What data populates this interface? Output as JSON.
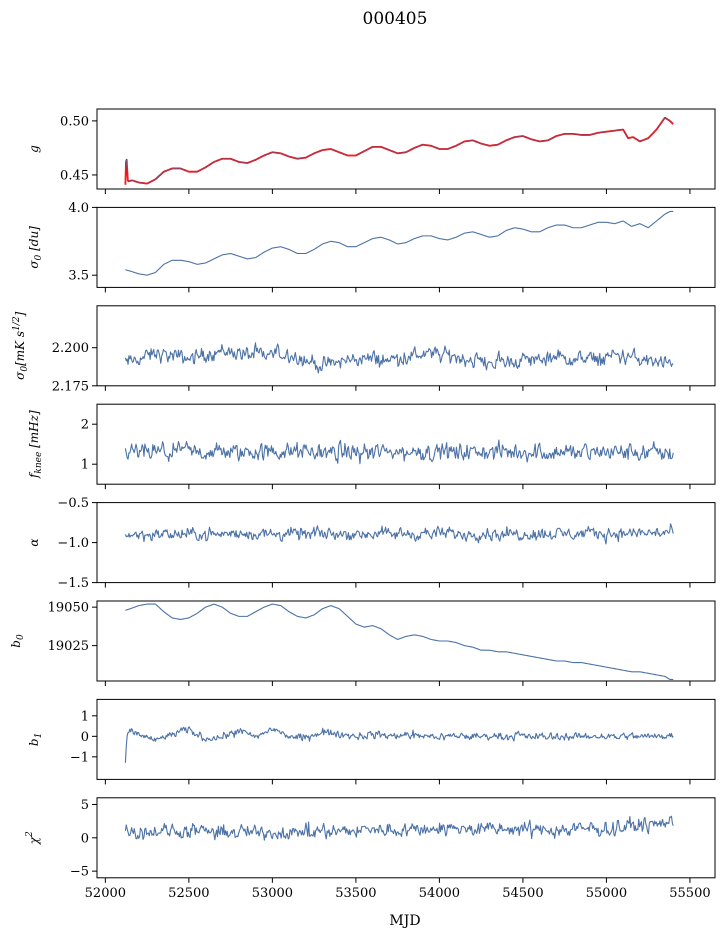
{
  "figure_title": "000405",
  "xlabel": "MJD",
  "colors": {
    "series": "#4c72a6",
    "fit_overlay": "#ff0000",
    "axes": "#000000"
  },
  "chart_data": [
    {
      "type": "line",
      "ylabel": "g",
      "xlim": [
        51950,
        55650
      ],
      "ylim": [
        0.437,
        0.511
      ],
      "yticks": [
        0.45,
        0.5
      ],
      "ytick_labels": [
        "0.45",
        "0.50"
      ],
      "series": [
        {
          "color": "#ff0000",
          "x": [
            52120,
            52125,
            52135,
            52160,
            52200,
            52250,
            52300,
            52350,
            52400,
            52450,
            52500,
            52550,
            52600,
            52650,
            52700,
            52750,
            52800,
            52850,
            52900,
            52950,
            53000,
            53050,
            53100,
            53150,
            53200,
            53250,
            53300,
            53350,
            53400,
            53450,
            53500,
            53550,
            53600,
            53650,
            53700,
            53750,
            53800,
            53850,
            53900,
            53950,
            54000,
            54050,
            54100,
            54150,
            54200,
            54250,
            54300,
            54350,
            54400,
            54450,
            54500,
            54550,
            54600,
            54650,
            54700,
            54750,
            54800,
            54850,
            54900,
            54950,
            55000,
            55050,
            55100,
            55130,
            55160,
            55200,
            55250,
            55300,
            55350,
            55380,
            55400
          ],
          "y": [
            0.441,
            0.47,
            0.444,
            0.445,
            0.443,
            0.442,
            0.446,
            0.453,
            0.456,
            0.456,
            0.453,
            0.453,
            0.457,
            0.462,
            0.465,
            0.465,
            0.462,
            0.461,
            0.464,
            0.468,
            0.471,
            0.47,
            0.467,
            0.465,
            0.466,
            0.47,
            0.473,
            0.474,
            0.471,
            0.468,
            0.468,
            0.472,
            0.476,
            0.476,
            0.473,
            0.47,
            0.471,
            0.475,
            0.478,
            0.477,
            0.474,
            0.474,
            0.477,
            0.481,
            0.482,
            0.479,
            0.477,
            0.478,
            0.482,
            0.485,
            0.486,
            0.483,
            0.481,
            0.482,
            0.486,
            0.488,
            0.488,
            0.487,
            0.487,
            0.489,
            0.49,
            0.491,
            0.492,
            0.484,
            0.485,
            0.481,
            0.484,
            0.492,
            0.503,
            0.5,
            0.497
          ]
        }
      ]
    },
    {
      "type": "line",
      "ylabel": "σ0 [du]",
      "xlim": [
        51950,
        55650
      ],
      "ylim": [
        3.41,
        4.0
      ],
      "yticks": [
        3.5,
        4.0
      ],
      "ytick_labels": [
        "3.5",
        "4.0"
      ],
      "series": [
        {
          "color": "#4c72a6",
          "x": [
            52120,
            52150,
            52200,
            52250,
            52300,
            52350,
            52400,
            52450,
            52500,
            52550,
            52600,
            52650,
            52700,
            52750,
            52800,
            52850,
            52900,
            52950,
            53000,
            53050,
            53100,
            53150,
            53200,
            53250,
            53300,
            53350,
            53400,
            53450,
            53500,
            53550,
            53600,
            53650,
            53700,
            53750,
            53800,
            53850,
            53900,
            53950,
            54000,
            54050,
            54100,
            54150,
            54200,
            54250,
            54300,
            54350,
            54400,
            54450,
            54500,
            54550,
            54600,
            54650,
            54700,
            54750,
            54800,
            54850,
            54900,
            54950,
            55000,
            55050,
            55100,
            55150,
            55200,
            55250,
            55300,
            55350,
            55380,
            55400
          ],
          "y": [
            3.54,
            3.53,
            3.51,
            3.5,
            3.52,
            3.58,
            3.61,
            3.61,
            3.6,
            3.58,
            3.59,
            3.62,
            3.65,
            3.66,
            3.64,
            3.62,
            3.63,
            3.67,
            3.7,
            3.71,
            3.69,
            3.66,
            3.66,
            3.69,
            3.73,
            3.75,
            3.74,
            3.71,
            3.71,
            3.74,
            3.77,
            3.78,
            3.76,
            3.73,
            3.74,
            3.77,
            3.79,
            3.79,
            3.77,
            3.76,
            3.78,
            3.81,
            3.82,
            3.8,
            3.78,
            3.79,
            3.83,
            3.85,
            3.84,
            3.82,
            3.82,
            3.85,
            3.87,
            3.87,
            3.85,
            3.85,
            3.87,
            3.89,
            3.89,
            3.88,
            3.9,
            3.86,
            3.88,
            3.85,
            3.9,
            3.95,
            3.97,
            3.97
          ]
        }
      ]
    },
    {
      "type": "line",
      "ylabel": "σ0[mK s1/2]",
      "xlim": [
        51950,
        55650
      ],
      "ylim": [
        2.175,
        2.2275
      ],
      "yticks": [
        2.175,
        2.2
      ],
      "ytick_labels": [
        "2.175",
        "2.200"
      ],
      "series": [
        {
          "color": "#4c72a6",
          "noise": 0.0035,
          "x": [
            52120,
            52300,
            52500,
            52700,
            52900,
            53100,
            53300,
            53500,
            53700,
            53900,
            54100,
            54300,
            54500,
            54700,
            54900,
            55100,
            55300,
            55400
          ],
          "y": [
            2.19,
            2.196,
            2.193,
            2.198,
            2.195,
            2.196,
            2.188,
            2.193,
            2.192,
            2.196,
            2.194,
            2.19,
            2.192,
            2.193,
            2.192,
            2.195,
            2.19,
            2.187
          ]
        }
      ]
    },
    {
      "type": "line",
      "ylabel": "fknee [mHz]",
      "xlim": [
        51950,
        55650
      ],
      "ylim": [
        0.5,
        2.5
      ],
      "yticks": [
        1,
        2
      ],
      "ytick_labels": [
        "1",
        "2"
      ],
      "series": [
        {
          "color": "#4c72a6",
          "noise": 0.16,
          "x": [
            52120,
            53000,
            54000,
            55000,
            55400
          ],
          "y": [
            1.3,
            1.3,
            1.3,
            1.3,
            1.28
          ]
        }
      ]
    },
    {
      "type": "line",
      "ylabel": "α",
      "xlim": [
        51950,
        55650
      ],
      "ylim": [
        -1.5,
        -0.5
      ],
      "yticks": [
        -1.5,
        -1.0,
        -0.5
      ],
      "ytick_labels": [
        "−1.5",
        "−1.0",
        "−0.5"
      ],
      "series": [
        {
          "color": "#4c72a6",
          "noise": 0.055,
          "x": [
            52120,
            53000,
            54000,
            55000,
            55400
          ],
          "y": [
            -0.9,
            -0.89,
            -0.89,
            -0.89,
            -0.87
          ]
        }
      ]
    },
    {
      "type": "line",
      "ylabel": "b0",
      "xlim": [
        51950,
        55650
      ],
      "ylim": [
        19002,
        19054
      ],
      "yticks": [
        19025,
        19050
      ],
      "ytick_labels": [
        "19025",
        "19050"
      ],
      "series": [
        {
          "color": "#4c72a6",
          "x": [
            52120,
            52150,
            52200,
            52250,
            52300,
            52350,
            52400,
            52450,
            52500,
            52550,
            52600,
            52650,
            52700,
            52750,
            52800,
            52850,
            52900,
            52950,
            53000,
            53050,
            53100,
            53150,
            53200,
            53250,
            53300,
            53350,
            53400,
            53450,
            53500,
            53550,
            53600,
            53650,
            53700,
            53750,
            53800,
            53850,
            53900,
            53950,
            54000,
            54050,
            54100,
            54150,
            54200,
            54250,
            54300,
            54350,
            54400,
            54450,
            54500,
            54550,
            54600,
            54650,
            54700,
            54750,
            54800,
            54850,
            54900,
            54950,
            55000,
            55050,
            55100,
            55150,
            55200,
            55250,
            55300,
            55350,
            55380,
            55400
          ],
          "y": [
            19048,
            19049,
            19051,
            19052,
            19052,
            19047,
            19043,
            19042,
            19043,
            19046,
            19050,
            19052,
            19050,
            19046,
            19044,
            19044,
            19047,
            19050,
            19052,
            19051,
            19047,
            19044,
            19043,
            19045,
            19049,
            19051,
            19049,
            19044,
            19039,
            19037,
            19038,
            19036,
            19032,
            19029,
            19031,
            19032,
            19031,
            19029,
            19028,
            19028,
            19027,
            19025,
            19024,
            19022,
            19022,
            19021,
            19021,
            19020,
            19019,
            19018,
            19017,
            19016,
            19015,
            19015,
            19014,
            19014,
            19013,
            19012,
            19011,
            19010,
            19009,
            19008,
            19008,
            19007,
            19006,
            19005,
            19003,
            19003
          ]
        }
      ]
    },
    {
      "type": "line",
      "ylabel": "b1",
      "xlim": [
        51950,
        55650
      ],
      "ylim": [
        -2.1,
        1.8
      ],
      "yticks": [
        -1,
        0,
        1
      ],
      "ytick_labels": [
        "−1",
        "0",
        "1"
      ],
      "series": [
        {
          "color": "#4c72a6",
          "noise": 0.13,
          "x": [
            52120,
            52130,
            52150,
            52200,
            52300,
            52400,
            52500,
            52600,
            52700,
            52800,
            52900,
            53000,
            53100,
            53200,
            53300,
            53400,
            53500,
            53600,
            53700,
            53800,
            53900,
            54000,
            54200,
            54400,
            54600,
            54800,
            55000,
            55100,
            55200,
            55300,
            55400
          ],
          "y": [
            -1.3,
            0.0,
            0.2,
            0.1,
            -0.2,
            0.1,
            0.3,
            -0.1,
            0.0,
            0.3,
            -0.1,
            0.4,
            0.0,
            -0.1,
            0.2,
            0.1,
            0.0,
            0.1,
            0.0,
            0.1,
            0.0,
            0.0,
            0.0,
            0.0,
            0.0,
            0.0,
            0.0,
            0.0,
            0.0,
            0.0,
            0.1
          ]
        }
      ]
    },
    {
      "type": "line",
      "ylabel": "χ2",
      "xlim": [
        51950,
        55650
      ],
      "ylim": [
        -6,
        6
      ],
      "yticks": [
        -5,
        0,
        5
      ],
      "ytick_labels": [
        "−5",
        "0",
        "5"
      ],
      "series": [
        {
          "color": "#4c72a6",
          "noise": 0.75,
          "x": [
            52120,
            53000,
            54000,
            54500,
            55000,
            55400
          ],
          "y": [
            1.0,
            0.8,
            1.4,
            1.2,
            1.3,
            2.5
          ]
        }
      ]
    }
  ],
  "xticks": [
    52000,
    52500,
    53000,
    53500,
    54000,
    54500,
    55000,
    55500
  ],
  "xtick_labels": [
    "52000",
    "52500",
    "53000",
    "53500",
    "54000",
    "54500",
    "55000",
    "55500"
  ]
}
